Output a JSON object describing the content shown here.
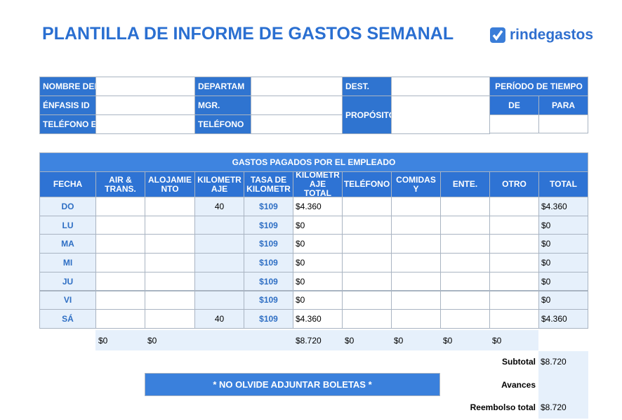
{
  "header": {
    "title": "PLANTILLA DE INFORME DE GASTOS SEMANAL",
    "logo": "rindegastos"
  },
  "info": {
    "labels": [
      "NOMBRE DEL",
      "ÉNFASIS ID",
      "TELÉFONO EM",
      "DEPARTAM",
      "MGR.",
      "TELÉFONO",
      "DEST.",
      "PROPÓSITO"
    ],
    "period": {
      "title": "PERÍODO DE TIEMPO",
      "from": "DE",
      "to": "PARA"
    }
  },
  "table": {
    "title": "GASTOS PAGADOS POR EL EMPLEADO",
    "columns": [
      "FECHA",
      "AIR & TRANS.",
      "ALOJAMIE NTO",
      "KILOMETR AJE",
      "TASA DE KILOMETR",
      "KILOMETR AJE TOTAL",
      "TELÉFONO",
      "COMIDAS Y",
      "ENTE.",
      "OTRO",
      "TOTAL"
    ],
    "rows": [
      [
        "DO",
        null,
        null,
        40,
        "$109",
        "$4.360",
        null,
        null,
        null,
        null,
        "$4.360"
      ],
      [
        "LU",
        null,
        null,
        null,
        "$109",
        "$0",
        null,
        null,
        null,
        null,
        "$0"
      ],
      [
        "MA",
        null,
        null,
        null,
        "$109",
        "$0",
        null,
        null,
        null,
        null,
        "$0"
      ],
      [
        "MI",
        null,
        null,
        null,
        "$109",
        "$0",
        null,
        null,
        null,
        null,
        "$0"
      ],
      [
        "JU",
        null,
        null,
        null,
        "$109",
        "$0",
        null,
        null,
        null,
        null,
        "$0"
      ],
      [
        "VI",
        null,
        null,
        null,
        "$109",
        "$0",
        null,
        null,
        null,
        null,
        "$0"
      ],
      [
        "SÁ",
        null,
        null,
        40,
        "$109",
        "$4.360",
        null,
        null,
        null,
        null,
        "$4.360"
      ]
    ],
    "totals": [
      null,
      "$0",
      "$0",
      null,
      null,
      "$8.720",
      "$0",
      "$0",
      "$0",
      "$0",
      null
    ]
  },
  "summary": {
    "subtotal_label": "Subtotal",
    "subtotal": "$8.720",
    "advances_label": "Avances",
    "reimbursement_label": "Reembolso total",
    "reimbursement": "$8.720"
  },
  "banner": "* NO OLVIDE ADJUNTAR BOLETAS *"
}
